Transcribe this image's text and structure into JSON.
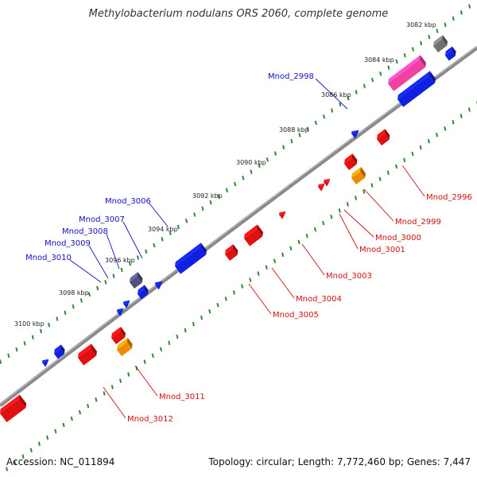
{
  "title": "Methylobacterium nodulans ORS 2060, complete genome",
  "footer": {
    "accession": "Accession: NC_011894",
    "summary": "Topology: circular; Length: 7,772,460 bp; Genes: 7,447"
  },
  "colors": {
    "backbone": "#8a8a8a",
    "outer_ticks": "#2e8b2e",
    "inner_ticks": "#2e8b2e",
    "forward_label": "#1010c0",
    "reverse_label": "#cc1010",
    "cds_blue": "#1020e0",
    "cds_red": "#e01010",
    "cds_orange": "#f08a00",
    "cds_pink": "#f040a0",
    "cds_gray": "#707070",
    "cds_slate": "#505080"
  },
  "scale_labels": [
    "3082 kbp",
    "3084 kbp",
    "3086 kbp",
    "3088 kbp",
    "3090 kbp",
    "3092 kbp",
    "3094 kbp",
    "3096 kbp",
    "3098 kbp",
    "3100 kbp"
  ],
  "forward_gene_labels": [
    "Mnod_2998",
    "Mnod_3006",
    "Mnod_3007",
    "Mnod_3008",
    "Mnod_3009",
    "Mnod_3010"
  ],
  "reverse_gene_labels": [
    "Mnod_2996",
    "Mnod_2999",
    "Mnod_3000",
    "Mnod_3001",
    "Mnod_3003",
    "Mnod_3004",
    "Mnod_3005",
    "Mnod_3011",
    "Mnod_3012"
  ]
}
